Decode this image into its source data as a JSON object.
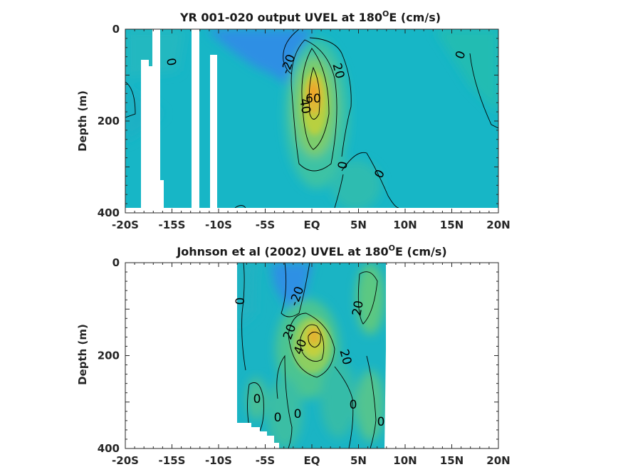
{
  "chart_data": [
    {
      "type": "heatmap",
      "title": "YR 001-020 output UVEL at 180ᴼE (cm/s)",
      "title_main": "YR 001-020 output UVEL at 180",
      "title_sup": "O",
      "title_end": "E (cm/s)",
      "xlabel": "",
      "ylabel": "Depth (m)",
      "x_ticks": [
        "-20S",
        "-15S",
        "-10S",
        "-5S",
        "EQ",
        "5N",
        "10N",
        "15N",
        "20N"
      ],
      "y_ticks": [
        "0",
        "200",
        "400"
      ],
      "xlim": [
        -20,
        20
      ],
      "ylim": [
        0,
        400
      ],
      "y_reversed": true,
      "contour_labels": [
        "0",
        "-20",
        "20",
        "40",
        "60",
        "0",
        "0",
        "0"
      ],
      "core": {
        "lat": 0.5,
        "depth": 140,
        "value": 60
      }
    },
    {
      "type": "heatmap",
      "title": "Johnson et al (2002) UVEL at 180ᴼE (cm/s)",
      "title_main": "Johnson et al (2002) UVEL at 180",
      "title_sup": "O",
      "title_end": "E (cm/s)",
      "xlabel": "",
      "ylabel": "Depth (m)",
      "x_ticks": [
        "-20S",
        "-15S",
        "-10S",
        "-5S",
        "EQ",
        "5N",
        "10N",
        "15N",
        "20N"
      ],
      "y_ticks": [
        "0",
        "200",
        "400"
      ],
      "xlim": [
        -20,
        20
      ],
      "ylim": [
        0,
        400
      ],
      "y_reversed": true,
      "data_extent_lat": [
        -8,
        8
      ],
      "contour_labels": [
        "0",
        "-20",
        "20",
        "20",
        "40",
        "20",
        "0",
        "0",
        "0",
        "0"
      ],
      "core": {
        "lat": 0.5,
        "depth": 165,
        "value": 40
      }
    }
  ],
  "colors": {
    "background_field": "#14b4c8",
    "westward_blue": "#2a8ee6",
    "green": "#4ec88a",
    "yellow_green": "#b4d040",
    "core_orange": "#e6a828"
  }
}
